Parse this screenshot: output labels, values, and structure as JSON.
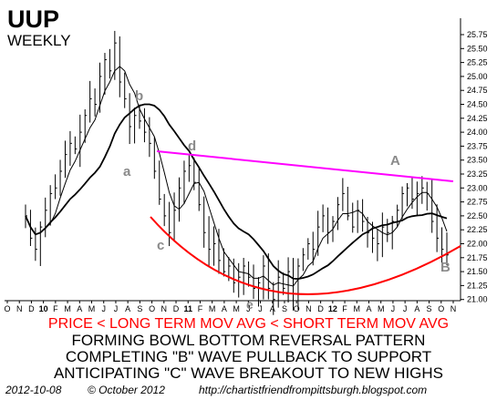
{
  "chart_data": {
    "type": "ohlc",
    "title": "UUP",
    "subtitle": "WEEKLY",
    "y_ticks": [
      "25.75",
      "25.50",
      "25.25",
      "25.00",
      "24.75",
      "24.50",
      "24.25",
      "24.00",
      "23.75",
      "23.50",
      "23.25",
      "23.00",
      "22.75",
      "22.50",
      "22.25",
      "22.00",
      "21.75",
      "21.50",
      "21.25",
      "21.00"
    ],
    "ylim": [
      20.85,
      25.9
    ],
    "x_tick_labels": [
      "O",
      "N",
      "D",
      "10",
      "F",
      "M",
      "A",
      "M",
      "J",
      "J",
      "A",
      "S",
      "O",
      "N",
      "D",
      "11",
      "F",
      "M",
      "A",
      "M",
      "J",
      "J",
      "A",
      "S",
      "O",
      "N",
      "D",
      "12",
      "F",
      "M",
      "A",
      "M",
      "J",
      "J",
      "A",
      "S",
      "O",
      "N"
    ],
    "year_labels": [
      "10",
      "11",
      "12"
    ],
    "long_ma_color": "#000000",
    "short_ma_color": "#000000",
    "resistance_color": "#ff00ff",
    "support_color": "#ff0000",
    "close_series": [
      22.5,
      22.1,
      21.9,
      22.3,
      22.6,
      22.9,
      23.0,
      23.3,
      23.6,
      23.8,
      23.7,
      24.0,
      24.3,
      24.6,
      24.5,
      25.0,
      25.3,
      25.1,
      25.6,
      24.9,
      24.6,
      24.1,
      24.3,
      24.2,
      24.0,
      23.8,
      23.3,
      22.8,
      22.5,
      22.2,
      22.6,
      23.0,
      23.3,
      23.4,
      23.1,
      22.7,
      22.2,
      21.9,
      22.0,
      21.7,
      21.5,
      21.6,
      21.3,
      21.4,
      21.6,
      21.4,
      21.2,
      21.3,
      21.6,
      21.2,
      21.0,
      21.4,
      21.2,
      21.5,
      21.1,
      21.6,
      21.8,
      22.0,
      21.9,
      22.3,
      22.5,
      22.2,
      22.4,
      22.7,
      22.9,
      22.5,
      22.3,
      22.6,
      22.4,
      22.2,
      22.1,
      22.0,
      22.3,
      22.2,
      22.4,
      22.6,
      22.9,
      23.0,
      22.8,
      22.9,
      23.0,
      22.9,
      22.4,
      22.1,
      21.9,
      21.8
    ],
    "wave_labels": [
      {
        "text": "a"
      },
      {
        "text": "b"
      },
      {
        "text": "c"
      },
      {
        "text": "d"
      },
      {
        "text": "e"
      },
      {
        "text": "A"
      },
      {
        "text": "B"
      }
    ]
  },
  "captions": {
    "line1": "PRICE < LONG TERM MOV AVG < SHORT TERM MOV AVG",
    "line2": "FORMING BOWL BOTTOM REVERSAL PATTERN",
    "line3": "COMPLETING \"B\" WAVE PULLBACK TO SUPPORT",
    "line4": "ANTICIPATING \"C\" WAVE BREAKOUT TO NEW HIGHS"
  },
  "footer": {
    "date": "2012-10-08",
    "copyright": "© October 2012",
    "url": "http://chartistfriendfrompittsburgh.blogspot.com"
  }
}
